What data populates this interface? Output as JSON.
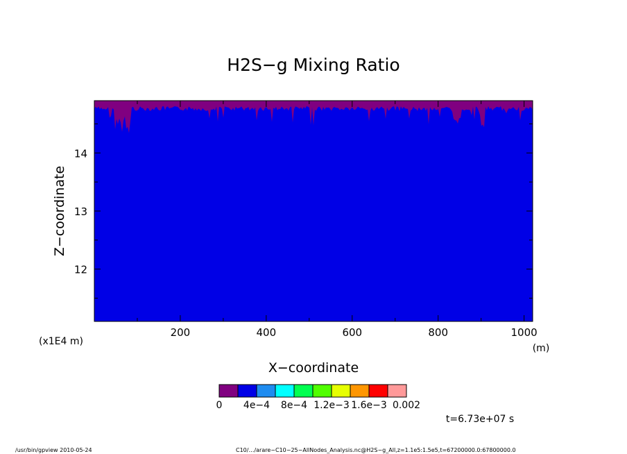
{
  "chart_data": {
    "type": "heatmap",
    "title": "H2S−g Mixing Ratio",
    "xlabel": "X−coordinate",
    "ylabel": "Z−coordinate",
    "x_unit": "(m)",
    "y_scale_note": "(x1E4 m)",
    "xlim": [
      0,
      1020
    ],
    "ylim": [
      11.1,
      14.9
    ],
    "x_ticks": [
      "200",
      "400",
      "600",
      "800",
      "1000"
    ],
    "y_ticks": [
      "12",
      "13",
      "14"
    ],
    "colorbar": {
      "labels": [
        "0",
        "4e−4",
        "8e−4",
        "1.2e−3",
        "1.6e−3",
        "0.002"
      ],
      "colors": [
        "#800080",
        "#0000e6",
        "#1e8cf0",
        "#00ffff",
        "#00ff50",
        "#50ff00",
        "#e6ff00",
        "#ff9600",
        "#ff0000",
        "#ff9999"
      ]
    },
    "fill_color": "#0000e6",
    "top_layer_color": "#800080",
    "time_label": "t=6.73e+07 s"
  },
  "footer": {
    "left": "/usr/bin/gpview   2010-05-24",
    "right": "C10/…/arare−C10−25−AllNodes_Analysis.nc@H2S−g_All,z=1.1e5:1.5e5,t=67200000.0:67800000.0"
  }
}
